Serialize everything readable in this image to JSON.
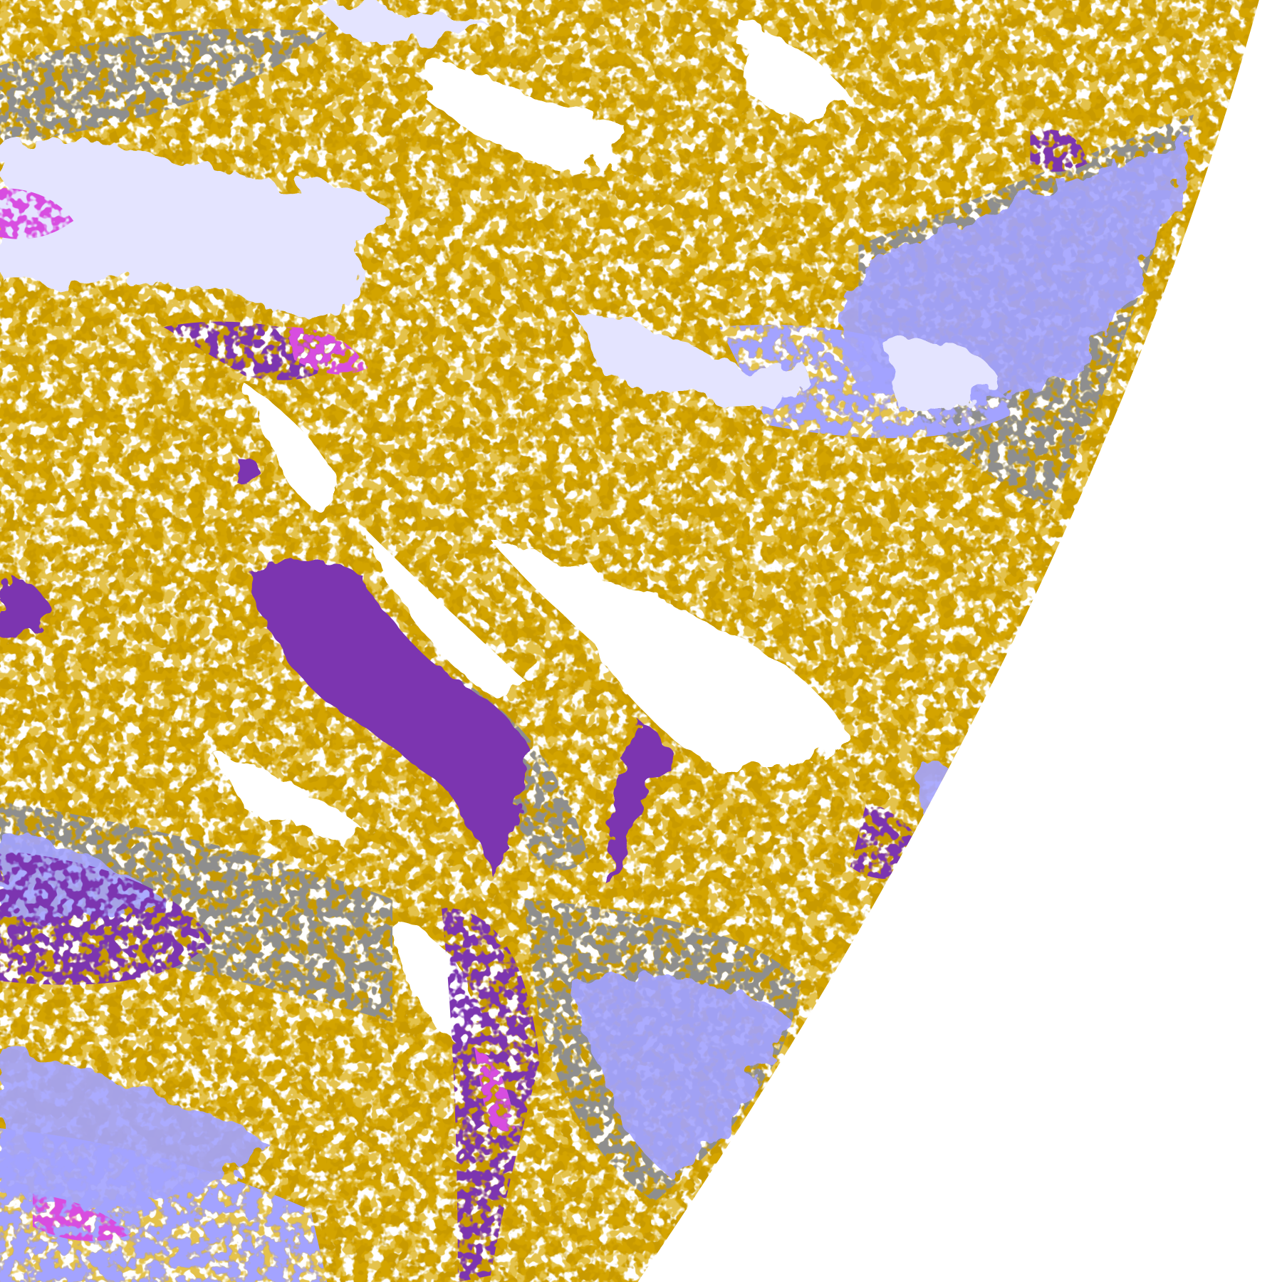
{
  "map": {
    "type": "satellite cloud-classification image",
    "colors": {
      "background": "#ffffff",
      "gold": "#c89a00",
      "gold_light": "#d9a900",
      "purple": "#7b35b0",
      "magenta": "#d84ee0",
      "lavender": "#a3a3ff",
      "pale_lavender": "#e4e4ff",
      "grey": "#8e8e8e"
    }
  }
}
